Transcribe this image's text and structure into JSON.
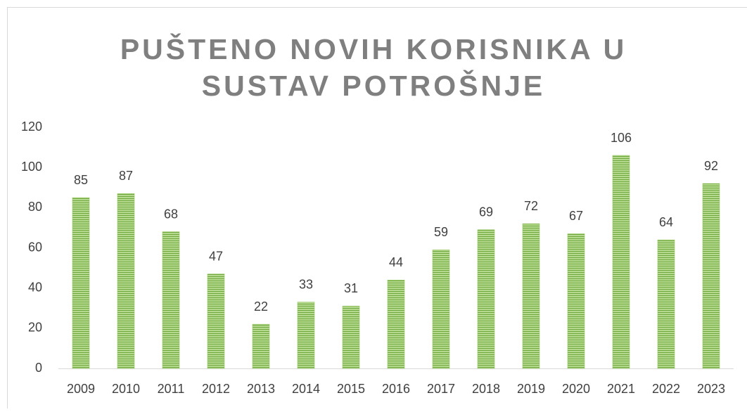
{
  "chart_data": {
    "type": "bar",
    "title": "PUŠTENO NOVIH KORISNIKA U SUSTAV POTROŠNJE",
    "categories": [
      "2009",
      "2010",
      "2011",
      "2012",
      "2013",
      "2014",
      "2015",
      "2016",
      "2017",
      "2018",
      "2019",
      "2020",
      "2021",
      "2022",
      "2023"
    ],
    "values": [
      85,
      87,
      68,
      47,
      22,
      33,
      31,
      44,
      59,
      69,
      72,
      67,
      106,
      64,
      92
    ],
    "color": "#8cc152",
    "ylim": [
      0,
      120
    ],
    "yticks": [
      0,
      20,
      40,
      60,
      80,
      100,
      120
    ],
    "grid": false
  }
}
